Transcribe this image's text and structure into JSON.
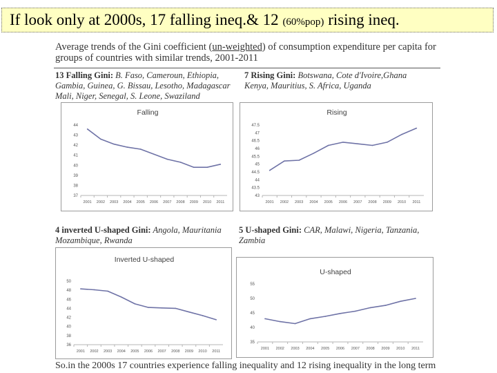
{
  "slide": {
    "title_part1": "If look only at 2000s, 17 falling ineq.& 12 ",
    "title_small": "(60%pop)",
    "title_part2": " rising ineq.",
    "heading_part1": "Average trends of the Gini coefficient (",
    "heading_underlined": "un-weighted",
    "heading_part2": ") of consumption expenditure per capita for groups of countries with similar trends, 2001-2011",
    "footer": "So.in the 2000s 17 countries experience falling inequality and 12 rising inequality in the long term"
  },
  "groups": [
    {
      "label": "13 Falling Gini:",
      "countries": " B. Faso, Cameroun, Ethiopia, Gambia, Guinea, G. Bissau, Lesotho, Madagascar Mali, Niger, Senegal,  S. Leone, Swaziland"
    },
    {
      "label": "7 Rising Gini:",
      "countries": " Botswana, Cote d'Ivoire,Ghana Kenya, Mauritius, S. Africa, Uganda"
    },
    {
      "label": "4 inverted U-shaped Gini:",
      "countries": "  Angola, Mauritania Mozambique, Rwanda"
    },
    {
      "label": "5  U-shaped Gini:",
      "countries": " CAR, Malawi, Nigeria, Tanzania, Zambia"
    }
  ],
  "chart_data": [
    {
      "type": "line",
      "title": "Falling",
      "categories": [
        "2001",
        "2002",
        "2003",
        "2004",
        "2005",
        "2006",
        "2007",
        "2008",
        "2009",
        "2010",
        "2011"
      ],
      "series": [
        {
          "values": [
            43.6,
            42.6,
            42.1,
            41.8,
            41.6,
            41.1,
            40.6,
            40.3,
            39.8,
            39.8,
            40.1
          ]
        }
      ],
      "ylim": [
        37,
        44
      ],
      "yticks": [
        37,
        38,
        39,
        40,
        41,
        42,
        43,
        44
      ],
      "ytick_labels": [
        "37",
        "38",
        "39",
        "40",
        "41",
        "42",
        "43",
        "44"
      ],
      "line_color": "#6e72a6",
      "grid": false
    },
    {
      "type": "line",
      "title": "Rising",
      "categories": [
        "2001",
        "2002",
        "2003",
        "2004",
        "2005",
        "2006",
        "2007",
        "2008",
        "2009",
        "2010",
        "2011"
      ],
      "series": [
        {
          "values": [
            44.6,
            45.2,
            45.25,
            45.7,
            46.2,
            46.4,
            46.3,
            46.2,
            46.4,
            46.9,
            47.3
          ]
        }
      ],
      "ylim": [
        43,
        47.5
      ],
      "yticks": [
        43,
        43.5,
        44,
        44.5,
        45,
        45.5,
        46,
        46.5,
        47,
        47.5
      ],
      "ytick_labels": [
        "43",
        "43.5",
        "44",
        "44.5",
        "45",
        "45.5",
        "46",
        "46.5",
        "47",
        "47.5"
      ],
      "line_color": "#6e72a6",
      "grid": false
    },
    {
      "type": "line",
      "title": "Inverted U-shaped",
      "categories": [
        "2001",
        "2002",
        "2003",
        "2004",
        "2005",
        "2006",
        "2007",
        "2008",
        "2009",
        "2010",
        "2011"
      ],
      "series": [
        {
          "values": [
            48.3,
            48.1,
            47.8,
            46.5,
            45.0,
            44.2,
            44.1,
            44.0,
            43.2,
            42.4,
            41.5
          ]
        }
      ],
      "ylim": [
        36,
        50
      ],
      "yticks": [
        36,
        38,
        40,
        42,
        44,
        46,
        48,
        50
      ],
      "ytick_labels": [
        "36",
        "38",
        "40",
        "42",
        "44",
        "46",
        "48",
        "50"
      ],
      "line_color": "#6e72a6",
      "grid": false
    },
    {
      "type": "line",
      "title": "U-shaped",
      "categories": [
        "2001",
        "2002",
        "2003",
        "2004",
        "2005",
        "2006",
        "2007",
        "2008",
        "2009",
        "2010",
        "2011"
      ],
      "series": [
        {
          "values": [
            43.0,
            42.0,
            41.3,
            43.0,
            43.8,
            44.8,
            45.6,
            46.8,
            47.6,
            49.0,
            50.0
          ]
        }
      ],
      "ylim": [
        35,
        55
      ],
      "yticks": [
        35,
        40,
        45,
        50,
        55
      ],
      "ytick_labels": [
        "35",
        "40",
        "45",
        "50",
        "55"
      ],
      "line_color": "#6e72a6",
      "grid": false
    }
  ]
}
